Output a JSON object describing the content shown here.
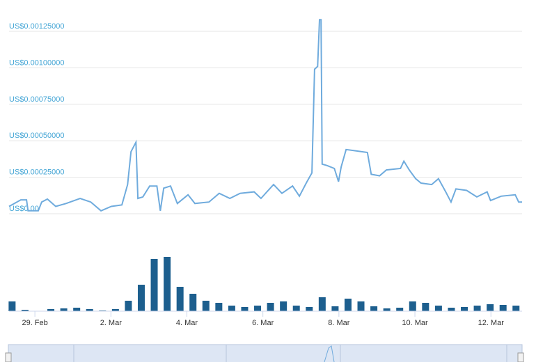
{
  "chart_data": {
    "type": "line",
    "series": [
      {
        "color": "#6fabdd",
        "x": [
          -0.68,
          -0.37,
          -0.22,
          -0.18,
          0.09,
          0.18,
          0.33,
          0.55,
          0.82,
          1.19,
          1.47,
          1.74,
          2.01,
          2.29,
          2.44,
          2.53,
          2.66,
          2.71,
          2.84,
          3.02,
          3.21,
          3.3,
          3.39,
          3.57,
          3.75,
          4.03,
          4.21,
          4.58,
          4.85,
          5.13,
          5.4,
          5.77,
          5.95,
          6.28,
          6.5,
          6.78,
          6.96,
          7.14,
          7.29,
          7.36,
          7.44,
          7.49,
          7.53,
          7.56,
          7.69,
          7.88,
          7.99,
          8.06,
          8.19,
          8.75,
          8.85,
          9.07,
          9.25,
          9.62,
          9.71,
          9.85,
          10.02,
          10.16,
          10.44,
          10.62,
          10.81,
          10.95,
          11.08,
          11.36,
          11.63,
          11.9,
          11.99,
          12.27,
          12.64,
          12.73,
          12.82
        ],
        "values": [
          5e-05,
          9.5e-05,
          9.5e-05,
          2e-05,
          2e-05,
          8e-05,
          0.0001,
          5e-05,
          7e-05,
          0.000105,
          8e-05,
          2e-05,
          5e-05,
          6e-05,
          0.0002,
          0.000425,
          0.00049,
          0.000105,
          0.000115,
          0.00019,
          0.00019,
          2e-05,
          0.000175,
          0.00019,
          7e-05,
          0.00013,
          7e-05,
          8e-05,
          0.00014,
          0.000105,
          0.00014,
          0.00015,
          0.000105,
          0.0002,
          0.00014,
          0.00019,
          0.00012,
          0.00021,
          0.00028,
          0.00099,
          0.00101,
          0.00133,
          0.00133,
          0.00034,
          0.00033,
          0.00031,
          0.00022,
          0.00032,
          0.00044,
          0.00042,
          0.00027,
          0.00026,
          0.0003,
          0.00031,
          0.00036,
          0.0003,
          0.00024,
          0.00021,
          0.0002,
          0.00024,
          0.00015,
          8e-05,
          0.00017,
          0.00016,
          0.000115,
          0.00015,
          9e-05,
          0.00012,
          0.00013,
          8e-05,
          8e-05
        ]
      }
    ],
    "volume": {
      "color": "#1d5f8e",
      "x": [
        -0.6,
        -0.26,
        0.08,
        0.42,
        0.76,
        1.1,
        1.44,
        1.78,
        2.12,
        2.46,
        2.8,
        3.14,
        3.48,
        3.82,
        4.16,
        4.5,
        4.84,
        5.18,
        5.52,
        5.86,
        6.2,
        6.54,
        6.88,
        7.22,
        7.56,
        7.9,
        8.24,
        8.58,
        8.92,
        9.26,
        9.6,
        9.94,
        10.28,
        10.62,
        10.96,
        11.3,
        11.64,
        11.98,
        12.32,
        12.66
      ],
      "values": [
        14,
        2,
        0,
        3,
        4,
        5,
        3,
        1,
        3,
        15,
        38,
        75,
        78,
        35,
        25,
        15,
        12,
        8,
        6,
        8,
        12,
        14,
        8,
        6,
        20,
        7,
        18,
        14,
        7,
        4,
        5,
        14,
        12,
        8,
        5,
        6,
        8,
        10,
        9,
        8
      ],
      "ylim": [
        0,
        80
      ]
    },
    "xlim": [
      -0.68,
      12.82
    ],
    "xticks": [
      {
        "value": 0,
        "label": "29. Feb"
      },
      {
        "value": 2,
        "label": "2. Mar"
      },
      {
        "value": 4,
        "label": "4. Mar"
      },
      {
        "value": 6,
        "label": "6. Mar"
      },
      {
        "value": 8,
        "label": "8. Mar"
      },
      {
        "value": 10,
        "label": "10. Mar"
      },
      {
        "value": 12,
        "label": "12. Mar"
      }
    ],
    "ylim": [
      0,
      0.00125
    ],
    "yticks": [
      {
        "value": 0,
        "label": "US$0.00"
      },
      {
        "value": 0.00025,
        "label": "US$0.00025000"
      },
      {
        "value": 0.0005,
        "label": "US$0.00050000"
      },
      {
        "value": 0.00075,
        "label": "US$0.00075000"
      },
      {
        "value": 0.001,
        "label": "US$0.00100000"
      },
      {
        "value": 0.00125,
        "label": "US$0.00125000"
      }
    ],
    "grid": true
  }
}
